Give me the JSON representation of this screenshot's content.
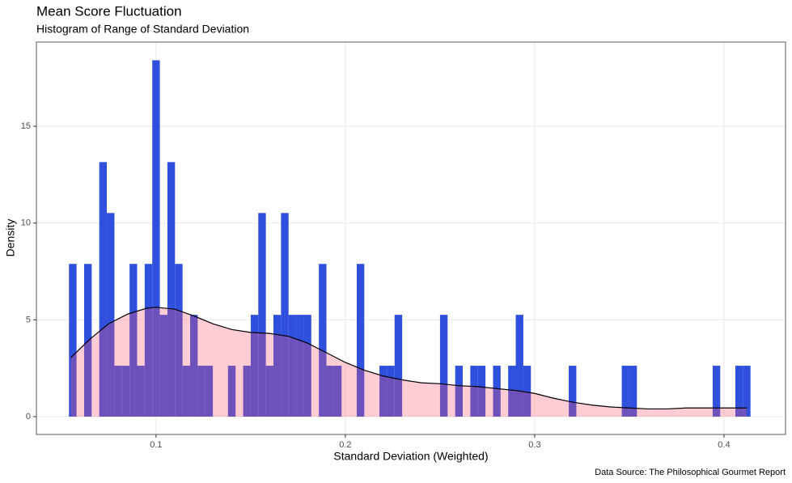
{
  "chart_data": {
    "type": "histogram",
    "title": "Mean Score Fluctuation",
    "subtitle": "Histogram of Range of Standard Deviation",
    "x_label": "Standard Deviation (Weighted)",
    "y_label": "Density",
    "caption": "Data Source: The Philosophical Gourmet Report",
    "bins": [
      0.054,
      0.058,
      0.062,
      0.066,
      0.07,
      0.074,
      0.078,
      0.082,
      0.086,
      0.09,
      0.094,
      0.098,
      0.102,
      0.106,
      0.11,
      0.114,
      0.118,
      0.122,
      0.126,
      0.13,
      0.134,
      0.138,
      0.142,
      0.146,
      0.15,
      0.154,
      0.158,
      0.162,
      0.166,
      0.17,
      0.174,
      0.178,
      0.182,
      0.186,
      0.19,
      0.194,
      0.198,
      0.202,
      0.206,
      0.21,
      0.214,
      0.218,
      0.222,
      0.226,
      0.23,
      0.234,
      0.238,
      0.242,
      0.246,
      0.25,
      0.254,
      0.258,
      0.262,
      0.266,
      0.27,
      0.274,
      0.278,
      0.282,
      0.286,
      0.29,
      0.294,
      0.298,
      0.302,
      0.306,
      0.31,
      0.314,
      0.318,
      0.322,
      0.326,
      0.33,
      0.334,
      0.338,
      0.342,
      0.346,
      0.35,
      0.354,
      0.358,
      0.362,
      0.366,
      0.37,
      0.374,
      0.378,
      0.382,
      0.386,
      0.39,
      0.394,
      0.398,
      0.402,
      0.406,
      0.41,
      0.414
    ],
    "values": [
      7.89,
      0,
      7.89,
      0,
      13.15,
      10.52,
      2.63,
      2.63,
      7.89,
      2.63,
      7.89,
      18.41,
      5.26,
      13.15,
      7.89,
      2.63,
      5.26,
      2.63,
      2.63,
      0,
      0,
      2.63,
      0,
      2.63,
      5.26,
      10.52,
      2.63,
      5.26,
      10.52,
      5.26,
      5.26,
      5.26,
      0,
      7.89,
      2.63,
      2.63,
      0,
      0,
      7.89,
      0,
      0,
      2.63,
      2.63,
      5.26,
      0,
      0,
      0,
      0,
      0,
      5.26,
      0,
      2.63,
      0,
      2.63,
      2.63,
      0,
      2.63,
      0,
      2.63,
      5.26,
      2.63,
      0,
      0,
      0,
      0,
      0,
      2.63,
      0,
      0,
      0,
      0,
      0,
      0,
      2.63,
      2.63,
      0,
      0,
      0,
      0,
      0,
      0,
      0,
      0,
      0,
      0,
      2.63,
      0,
      0,
      2.63,
      2.63
    ],
    "color": "#2f50dd",
    "density": {
      "color": "#000000",
      "fill": "#ff5a6e",
      "x": [
        0.055,
        0.065,
        0.075,
        0.085,
        0.095,
        0.1,
        0.11,
        0.12,
        0.13,
        0.14,
        0.15,
        0.16,
        0.17,
        0.18,
        0.19,
        0.2,
        0.21,
        0.22,
        0.23,
        0.24,
        0.25,
        0.26,
        0.27,
        0.28,
        0.29,
        0.3,
        0.31,
        0.32,
        0.33,
        0.34,
        0.35,
        0.36,
        0.37,
        0.38,
        0.39,
        0.4,
        0.412
      ],
      "y": [
        3.05,
        4.0,
        4.8,
        5.3,
        5.6,
        5.65,
        5.55,
        5.2,
        4.8,
        4.5,
        4.35,
        4.3,
        4.15,
        3.8,
        3.3,
        2.8,
        2.4,
        2.1,
        1.9,
        1.75,
        1.7,
        1.6,
        1.55,
        1.45,
        1.35,
        1.2,
        0.95,
        0.75,
        0.6,
        0.5,
        0.45,
        0.4,
        0.4,
        0.45,
        0.45,
        0.45,
        0.45
      ]
    },
    "xlim": [
      0.0368,
      0.4325
    ],
    "ylim": [
      -0.92,
      19.35
    ],
    "xticks": [
      0.1,
      0.2,
      0.3,
      0.4
    ],
    "yticks": [
      0,
      5,
      10,
      15
    ],
    "grid": true
  }
}
